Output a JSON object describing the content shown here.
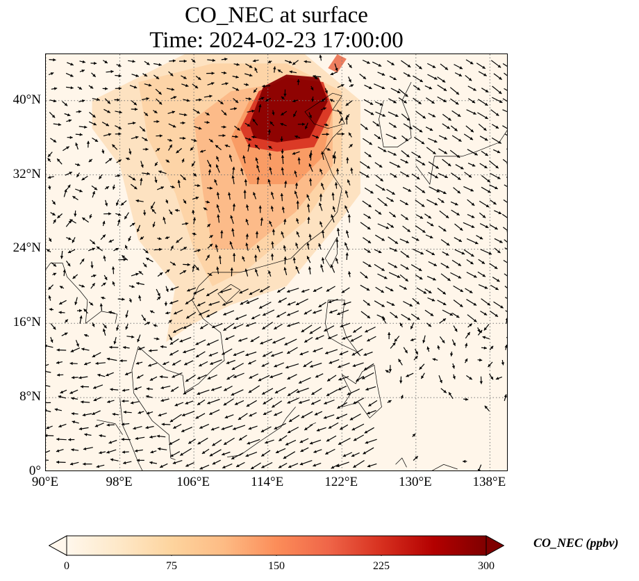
{
  "header": {
    "title": "CO_NEC at surface",
    "subtitle": "Time: 2024-02-23 17:00:00"
  },
  "map": {
    "lon_range": [
      90,
      140
    ],
    "lat_range": [
      0,
      45
    ],
    "lon_ticks": [
      "90°E",
      "98°E",
      "106°E",
      "114°E",
      "122°E",
      "130°E",
      "138°E"
    ],
    "lat_ticks": [
      "0°",
      "8°N",
      "16°N",
      "24°N",
      "32°N",
      "40°N"
    ],
    "lon_tick_values": [
      90,
      98,
      106,
      114,
      122,
      130,
      138
    ],
    "lat_tick_values": [
      0,
      8,
      16,
      24,
      32,
      40
    ],
    "gridlines": "dotted",
    "field_colormap": "OrRd",
    "high_concentration_region": "North China Plain (approx. 112-120°E, 36-44°N) saturated above 300 ppbv",
    "vector_field": "wind arrows (black)"
  },
  "colorbar": {
    "label": "CO_NEC (ppbv)",
    "ticks": [
      "0",
      "75",
      "150",
      "225",
      "300"
    ],
    "tick_values": [
      0,
      75,
      150,
      225,
      300
    ],
    "range": [
      0,
      300
    ],
    "extend": "both",
    "colors": [
      "#fff7ec",
      "#fee8c8",
      "#fdd49e",
      "#fdbb84",
      "#fc8d59",
      "#ef6548",
      "#d7301f",
      "#b30000",
      "#7f0000"
    ]
  }
}
